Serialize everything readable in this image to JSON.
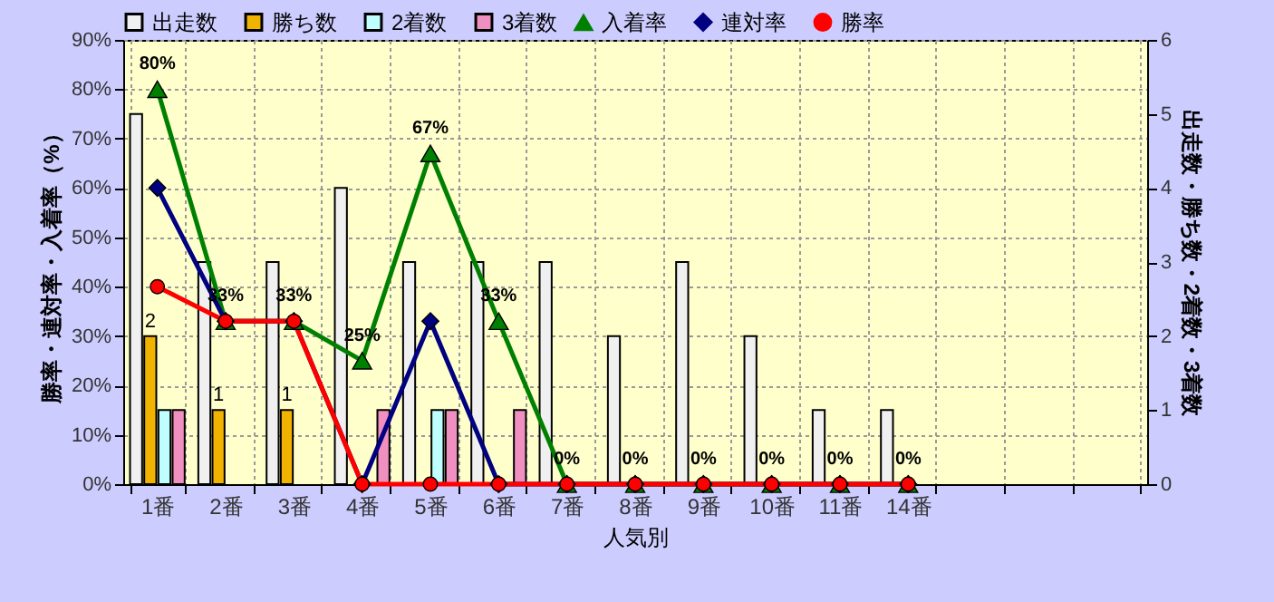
{
  "chart_data": {
    "type": "bar",
    "xlabel": "人気別",
    "ylabel": "勝率・連対率・入着率（%）",
    "y2label": "出走数・勝ち数・2着数・3着数",
    "categories": [
      "1番",
      "2番",
      "3番",
      "4番",
      "5番",
      "6番",
      "7番",
      "8番",
      "9番",
      "10番",
      "11番",
      "14番",
      null,
      null,
      null
    ],
    "series": [
      {
        "name": "出走数",
        "color": "#f0f0f0",
        "axis": "y2",
        "values": [
          5,
          3,
          3,
          4,
          3,
          3,
          3,
          2,
          3,
          2,
          1,
          1,
          null,
          null,
          null
        ]
      },
      {
        "name": "勝ち数",
        "color": "#f0b400",
        "axis": "y2",
        "values": [
          2,
          1,
          1,
          0,
          0,
          0,
          0,
          0,
          0,
          0,
          0,
          0,
          null,
          null,
          null
        ],
        "value_labels": [
          "2",
          "1",
          "1",
          null,
          null,
          null,
          null,
          null,
          null,
          null,
          null,
          null,
          null,
          null,
          null
        ]
      },
      {
        "name": "2着数",
        "color": "#c0ffff",
        "axis": "y2",
        "values": [
          1,
          0,
          0,
          0,
          1,
          0,
          0,
          0,
          0,
          0,
          0,
          0,
          null,
          null,
          null
        ]
      },
      {
        "name": "3着数",
        "color": "#f090c0",
        "axis": "y2",
        "values": [
          1,
          0,
          0,
          1,
          1,
          1,
          0,
          0,
          0,
          0,
          0,
          0,
          null,
          null,
          null
        ]
      },
      {
        "name": "入着率",
        "type": "line",
        "color": "#008000",
        "marker": "triangle",
        "values": [
          80,
          33,
          33,
          25,
          67,
          33,
          0,
          0,
          0,
          0,
          0,
          0,
          null,
          null,
          null
        ],
        "value_labels": [
          "80%",
          "33%",
          "33%",
          "25%",
          "67%",
          "33%",
          "0%",
          "0%",
          "0%",
          "0%",
          "0%",
          "0%",
          null,
          null,
          null
        ]
      },
      {
        "name": "連対率",
        "type": "line",
        "color": "#000080",
        "marker": "diamond",
        "values": [
          60,
          33,
          33,
          0,
          33,
          0,
          0,
          0,
          0,
          0,
          0,
          0,
          null,
          null,
          null
        ]
      },
      {
        "name": "勝率",
        "type": "line",
        "color": "#ff0000",
        "marker": "circle",
        "values": [
          40,
          33,
          33,
          0,
          0,
          0,
          0,
          0,
          0,
          0,
          0,
          0,
          null,
          null,
          null
        ]
      }
    ],
    "ylim": [
      0,
      90
    ],
    "yticks": [
      {
        "value": 0,
        "label": "0%"
      },
      {
        "value": 10,
        "label": "10%"
      },
      {
        "value": 20,
        "label": "20%"
      },
      {
        "value": 30,
        "label": "30%"
      },
      {
        "value": 40,
        "label": "40%"
      },
      {
        "value": 50,
        "label": "50%"
      },
      {
        "value": 60,
        "label": "60%"
      },
      {
        "value": 70,
        "label": "70%"
      },
      {
        "value": 80,
        "label": "80%"
      },
      {
        "value": 90,
        "label": "90%"
      }
    ],
    "y2lim": [
      0,
      6
    ],
    "y2ticks": [
      0,
      1,
      2,
      3,
      4,
      5,
      6
    ],
    "grid": true,
    "legend": "top"
  }
}
